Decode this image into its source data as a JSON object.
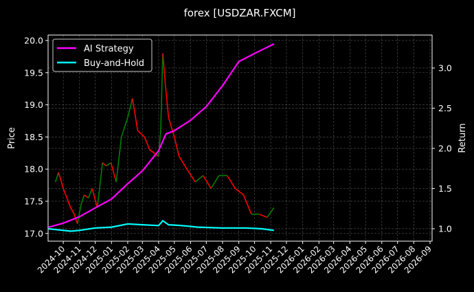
{
  "chart_data": {
    "type": "line",
    "title": "forex [USDZAR.FXCM]",
    "ylabel": "Price",
    "ylabel_right": "Return",
    "xlim": [
      "2024-09-02",
      "2026-09-05"
    ],
    "ylim": [
      16.88,
      20.085
    ],
    "ylim_right": [
      0.846,
      3.41
    ],
    "grid": true,
    "legend_placement": "top-left",
    "x_ticks": [
      "2024-10",
      "2024-11",
      "2024-12",
      "2025-01",
      "2025-02",
      "2025-03",
      "2025-04",
      "2025-05",
      "2025-06",
      "2025-07",
      "2025-08",
      "2025-09",
      "2025-10",
      "2025-11",
      "2025-12",
      "2026-01",
      "2026-02",
      "2026-03",
      "2026-04",
      "2026-05",
      "2026-06",
      "2026-07",
      "2026-08",
      "2026-09"
    ],
    "y_ticks": [
      "17.0",
      "17.5",
      "18.0",
      "18.5",
      "19.0",
      "19.5",
      "20.0"
    ],
    "y_ticks_right": [
      "1.0",
      "1.5",
      "2.0",
      "2.5",
      "3.0"
    ],
    "colors": {
      "up": "#008000",
      "down": "#ff0000",
      "strategy": "#ff00ff",
      "buyhold": "#00ffff",
      "grid": "#555555"
    },
    "price": {
      "x": [
        "2024-09-16",
        "2024-09-22",
        "2024-10-01",
        "2024-10-08",
        "2024-10-15",
        "2024-10-22",
        "2024-10-28",
        "2024-11-04",
        "2024-11-10",
        "2024-11-18",
        "2024-11-25",
        "2024-12-05",
        "2024-12-15",
        "2024-12-22",
        "2024-12-31",
        "2025-01-10",
        "2025-01-20",
        "2025-02-01",
        "2025-02-10",
        "2025-02-20",
        "2025-03-05",
        "2025-03-15",
        "2025-04-01",
        "2025-04-05",
        "2025-04-09",
        "2025-04-14",
        "2025-04-20",
        "2025-05-01",
        "2025-05-10",
        "2025-05-25",
        "2025-06-10",
        "2025-06-25",
        "2025-07-10",
        "2025-07-25",
        "2025-08-10",
        "2025-08-25",
        "2025-09-10",
        "2025-09-25",
        "2025-10-10",
        "2025-10-25",
        "2025-11-07"
      ],
      "values": [
        17.8,
        17.95,
        17.7,
        17.55,
        17.4,
        17.3,
        17.15,
        17.45,
        17.6,
        17.55,
        17.7,
        17.4,
        18.1,
        18.05,
        18.1,
        17.8,
        18.5,
        18.8,
        19.1,
        18.6,
        18.5,
        18.3,
        18.2,
        18.6,
        19.8,
        19.3,
        18.8,
        18.5,
        18.2,
        18.0,
        17.8,
        17.9,
        17.7,
        17.9,
        17.9,
        17.7,
        17.6,
        17.3,
        17.3,
        17.25,
        17.4
      ]
    },
    "series": [
      {
        "name": "AI Strategy",
        "x": [
          "2024-09-03",
          "2024-10-01",
          "2024-11-01",
          "2024-12-01",
          "2025-01-01",
          "2025-02-01",
          "2025-03-01",
          "2025-04-01",
          "2025-04-15",
          "2025-05-01",
          "2025-06-01",
          "2025-07-01",
          "2025-08-01",
          "2025-09-01",
          "2025-10-01",
          "2025-11-01",
          "2025-11-07"
        ],
        "values": [
          1.02,
          1.07,
          1.15,
          1.26,
          1.37,
          1.56,
          1.72,
          1.97,
          2.18,
          2.22,
          2.35,
          2.52,
          2.78,
          3.08,
          3.18,
          3.28,
          3.3
        ]
      },
      {
        "name": "Buy-and-Hold",
        "x": [
          "2024-09-03",
          "2024-10-01",
          "2024-10-15",
          "2024-11-01",
          "2024-12-01",
          "2025-01-01",
          "2025-02-01",
          "2025-03-01",
          "2025-04-01",
          "2025-04-09",
          "2025-04-20",
          "2025-05-15",
          "2025-06-15",
          "2025-08-01",
          "2025-09-15",
          "2025-10-15",
          "2025-11-07"
        ],
        "values": [
          1.0,
          0.98,
          0.97,
          0.98,
          1.01,
          1.02,
          1.06,
          1.05,
          1.04,
          1.1,
          1.05,
          1.04,
          1.02,
          1.01,
          1.01,
          1.0,
          0.98
        ]
      }
    ]
  }
}
